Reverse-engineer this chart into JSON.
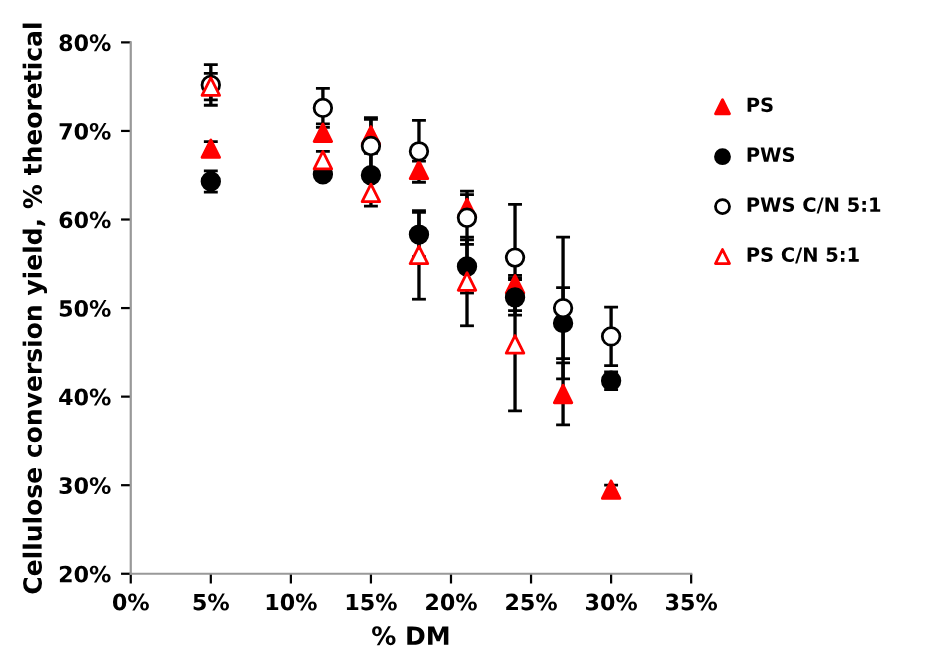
{
  "chart_data": {
    "type": "scatter",
    "xlabel": "% DM",
    "ylabel": "Cellulose conversion yield, % theoretical",
    "x": [
      5,
      12,
      15,
      18,
      21,
      24,
      27,
      30
    ],
    "xlim": [
      0,
      35
    ],
    "xticks": [
      {
        "value": 0,
        "label": "0%"
      },
      {
        "value": 5,
        "label": "5%"
      },
      {
        "value": 10,
        "label": "10%"
      },
      {
        "value": 15,
        "label": "15%"
      },
      {
        "value": 20,
        "label": "20%"
      },
      {
        "value": 25,
        "label": "25%"
      },
      {
        "value": 30,
        "label": "30%"
      },
      {
        "value": 35,
        "label": "35%"
      }
    ],
    "ylim": [
      20,
      80
    ],
    "yticks": [
      {
        "value": 20,
        "label": "20%"
      },
      {
        "value": 30,
        "label": "30%"
      },
      {
        "value": 40,
        "label": "40%"
      },
      {
        "value": 50,
        "label": "50%"
      },
      {
        "value": 60,
        "label": "60%"
      },
      {
        "value": 70,
        "label": "70%"
      },
      {
        "value": 80,
        "label": "80%"
      }
    ],
    "grid": false,
    "legend": "right",
    "series": [
      {
        "name": "PS",
        "color": "#ff0000",
        "marker": "triangle",
        "values": [
          68,
          69.8,
          69.5,
          65.6,
          61.3,
          52.7,
          40.3,
          29.5
        ],
        "errors": [
          0.8,
          1,
          2,
          1,
          1.5,
          1,
          3.5,
          0.5
        ]
      },
      {
        "name": "PWS",
        "color": "#000000",
        "marker": "circle",
        "values": [
          64.3,
          65.1,
          65,
          58.3,
          54.7,
          51.2,
          48.3,
          41.8
        ],
        "errors": [
          1.2,
          0.6,
          2.5,
          2.5,
          3,
          2,
          4,
          1
        ]
      },
      {
        "name": "PWS C/N 5:1",
        "color": "#000000",
        "marker": "circle",
        "colors": [
          "#ffffff",
          "#ffffff",
          "#ffffff",
          "#ffffff",
          "#ffffff",
          "#ffffff",
          "#ffffff",
          "#ffffff"
        ],
        "values": [
          75.2,
          72.6,
          68.3,
          67.7,
          60.2,
          55.7,
          50,
          46.8
        ],
        "errors": [
          2.3,
          2.2,
          3,
          3.5,
          3,
          6,
          8,
          3.3
        ]
      },
      {
        "name": "PS C/N 5:1",
        "color": "#ff0000",
        "marker": "triangle",
        "colors": [
          "#ffffff",
          "#ffffff",
          "#ffffff",
          "#ffffff",
          "#ffffff",
          "#ffffff",
          null,
          null
        ],
        "values": [
          75,
          66.7,
          63,
          56,
          53,
          45.9,
          null,
          null
        ],
        "errors": [
          1.5,
          1,
          1.5,
          5,
          5,
          7.5,
          null,
          null
        ]
      }
    ]
  }
}
